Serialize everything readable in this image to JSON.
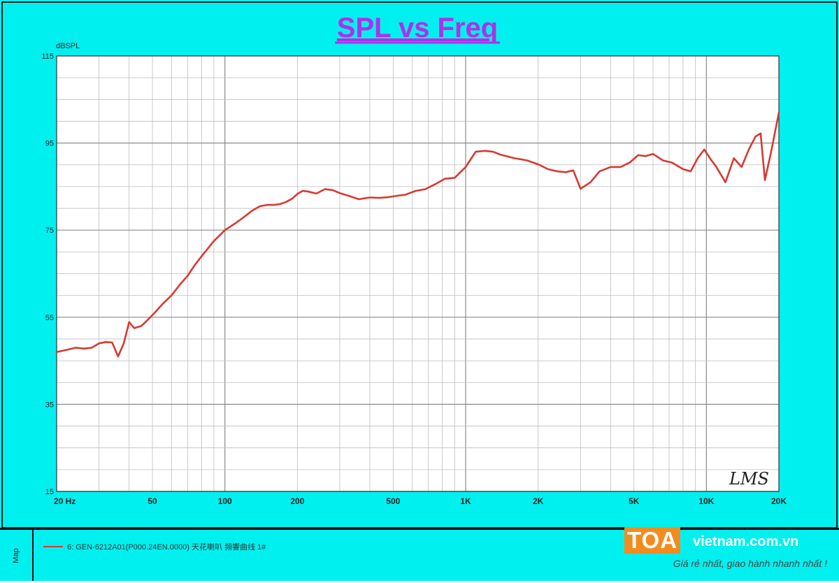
{
  "chart_data": {
    "type": "line",
    "title": "SPL vs Freq",
    "ylabel": "dBSPL",
    "xlabel": "",
    "xscale": "log",
    "xlim": [
      20,
      20000
    ],
    "ylim": [
      15,
      115
    ],
    "y_ticks": [
      "115",
      "95",
      "75",
      "55",
      "35",
      "15"
    ],
    "x_ticks": [
      {
        "value": 20,
        "label": "20  Hz"
      },
      {
        "value": 50,
        "label": "50"
      },
      {
        "value": 100,
        "label": "100"
      },
      {
        "value": 200,
        "label": "200"
      },
      {
        "value": 500,
        "label": "500"
      },
      {
        "value": 1000,
        "label": "1K"
      },
      {
        "value": 2000,
        "label": "2K"
      },
      {
        "value": 5000,
        "label": "5K"
      },
      {
        "value": 10000,
        "label": "10K"
      },
      {
        "value": 20000,
        "label": "20K"
      }
    ],
    "grid": true,
    "colors": {
      "background": "#00f0f0",
      "plot_bg": "#ffffff",
      "line": "#d63a32",
      "title": "#b030e8"
    },
    "series": [
      {
        "name": "6: GEN-6212A01(P000.24EN.0000) 天花喇叭 頻響曲线 1#",
        "color": "#d63a32",
        "x": [
          20,
          22,
          24,
          26,
          28,
          30,
          32,
          34,
          36,
          38,
          40,
          42,
          45,
          48,
          51,
          55,
          60,
          65,
          70,
          75,
          80,
          90,
          100,
          110,
          120,
          130,
          140,
          150,
          160,
          170,
          180,
          190,
          200,
          210,
          220,
          240,
          260,
          280,
          300,
          330,
          360,
          400,
          440,
          480,
          520,
          560,
          620,
          680,
          750,
          820,
          900,
          1000,
          1100,
          1200,
          1300,
          1400,
          1600,
          1800,
          2000,
          2200,
          2400,
          2600,
          2800,
          3000,
          3300,
          3600,
          4000,
          4400,
          4800,
          5200,
          5600,
          6000,
          6600,
          7200,
          8000,
          8600,
          9200,
          9800,
          10500,
          11000,
          12000,
          13000,
          14000,
          15000,
          16000,
          16800,
          17500,
          18500,
          20000
        ],
        "y": [
          47,
          47.5,
          48,
          47.8,
          48,
          49,
          49.3,
          49.2,
          46,
          49,
          53.9,
          52.5,
          53,
          54.5,
          56,
          58,
          60,
          62.5,
          64.5,
          67,
          69,
          72.5,
          75,
          76.5,
          78,
          79.5,
          80.5,
          80.8,
          80.8,
          81,
          81.5,
          82.2,
          83.3,
          84,
          83.9,
          83.4,
          84.4,
          84.2,
          83.5,
          82.8,
          82.1,
          82.5,
          82.4,
          82.6,
          82.9,
          83.1,
          84,
          84.4,
          85.6,
          86.8,
          87,
          89.5,
          93,
          93.2,
          93,
          92.3,
          91.5,
          91,
          90.1,
          89,
          88.5,
          88.3,
          88.7,
          84.5,
          86,
          88.5,
          89.5,
          89.5,
          90.5,
          92.2,
          92,
          92.5,
          91,
          90.5,
          89,
          88.5,
          91.5,
          93.5,
          91,
          89.5,
          86,
          91.5,
          89.5,
          93.5,
          96.5,
          97.2,
          86.5,
          92.5,
          102
        ]
      }
    ],
    "annotations": [
      "LMS"
    ]
  },
  "legend": {
    "tab_label": "Map",
    "entry_text": "6: GEN-6212A01(P000.24EN.0000) 天花喇叭 頻響曲线 1#"
  },
  "brand": {
    "logo": "TOA",
    "domain": "vietnam.com.vn",
    "tagline": "Giá rẻ nhất, giao hành nhanh nhất !"
  }
}
